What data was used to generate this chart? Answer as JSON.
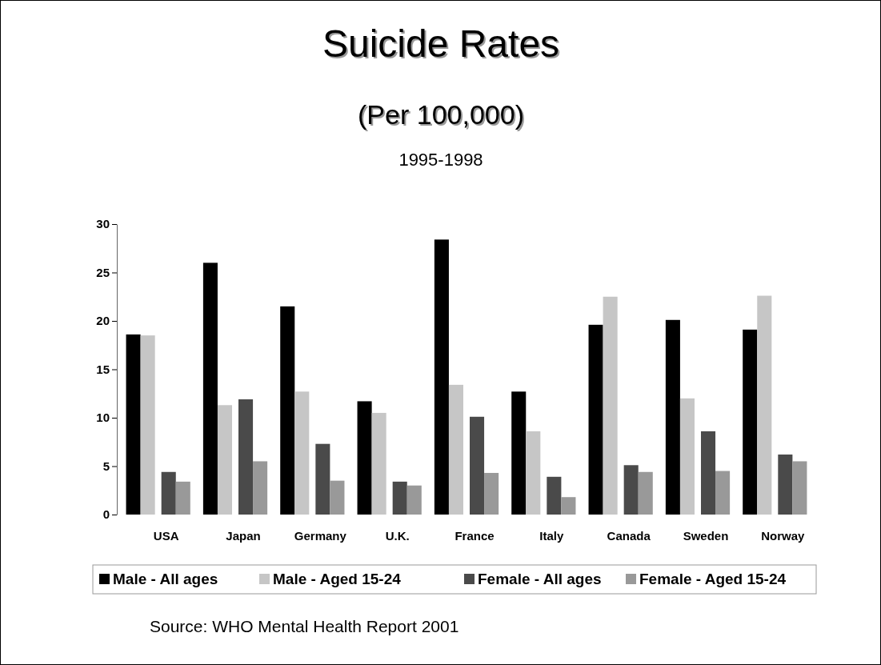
{
  "chart_data": {
    "type": "bar",
    "title": "Suicide Rates",
    "subtitle": "(Per 100,000)",
    "annotations": [
      "1995-1998",
      "Source: WHO Mental Health Report 2001"
    ],
    "categories": [
      "USA",
      "Japan",
      "Germany",
      "U.K.",
      "France",
      "Italy",
      "Canada",
      "Sweden",
      "Norway"
    ],
    "series": [
      {
        "name": "Male - All ages",
        "color": "#000000",
        "values": [
          18.6,
          26.0,
          21.5,
          11.7,
          28.4,
          12.7,
          19.6,
          20.1,
          19.1
        ]
      },
      {
        "name": "Male - Aged 15-24",
        "color": "#c6c6c6",
        "values": [
          18.5,
          11.3,
          12.7,
          10.5,
          13.4,
          8.6,
          22.5,
          12.0,
          22.6
        ]
      },
      {
        "name": "Female - All ages",
        "color": "#4a4a4a",
        "values": [
          4.4,
          11.9,
          7.3,
          3.4,
          10.1,
          3.9,
          5.1,
          8.6,
          6.2
        ]
      },
      {
        "name": "Female - Aged 15-24",
        "color": "#999999",
        "values": [
          3.4,
          5.5,
          3.5,
          3.0,
          4.3,
          1.8,
          4.4,
          4.5,
          5.5
        ]
      }
    ],
    "ylim": [
      0,
      30
    ],
    "yticks": [
      0,
      5,
      10,
      15,
      20,
      25,
      30
    ],
    "grid": false,
    "legend": "bottom"
  }
}
